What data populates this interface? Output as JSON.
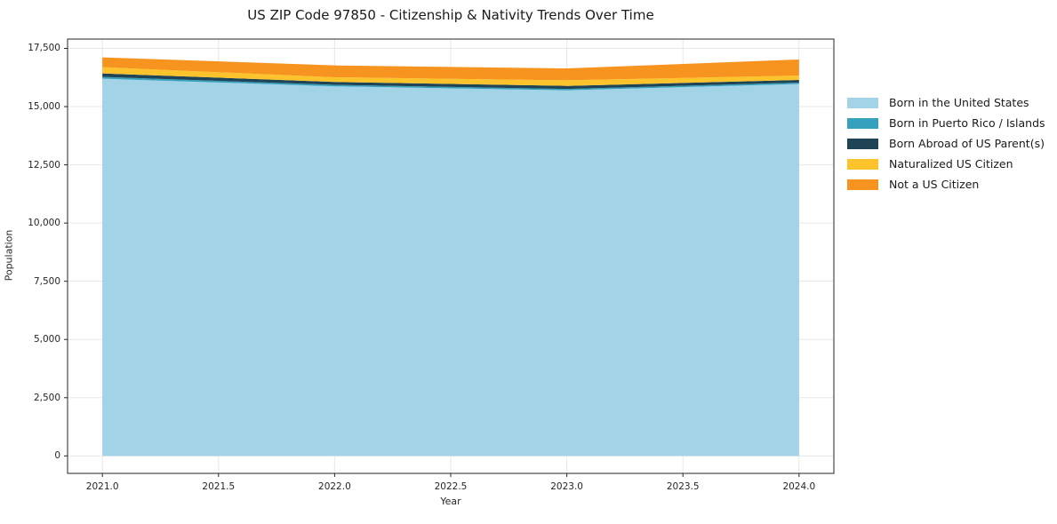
{
  "chart_data": {
    "type": "area",
    "stacked": true,
    "title": "US ZIP Code 97850 - Citizenship & Nativity Trends Over Time",
    "xlabel": "Year",
    "ylabel": "Population",
    "x": [
      2021,
      2022,
      2023,
      2024
    ],
    "series": [
      {
        "name": "Born in the United States",
        "color": "#a3d3e6",
        "values": [
          16200,
          15870,
          15700,
          15970
        ]
      },
      {
        "name": "Born in Puerto Rico / Islands",
        "color": "#35a1bd",
        "values": [
          75,
          65,
          60,
          60
        ]
      },
      {
        "name": "Born Abroad of US Parent(s)",
        "color": "#1f4456",
        "values": [
          150,
          125,
          130,
          115
        ]
      },
      {
        "name": "Naturalized US Citizen",
        "color": "#fcc32d",
        "values": [
          270,
          200,
          240,
          190
        ]
      },
      {
        "name": "Not a US Citizen",
        "color": "#f7941f",
        "values": [
          420,
          510,
          510,
          690
        ]
      }
    ],
    "totals": [
      17115,
      16770,
      16640,
      17025
    ],
    "x_tick_labels": [
      "2021.0",
      "2021.5",
      "2022.0",
      "2022.5",
      "2023.0",
      "2023.5",
      "2024.0"
    ],
    "x_tick_values": [
      2021,
      2021.5,
      2022,
      2022.5,
      2023,
      2023.5,
      2024
    ],
    "y_tick_labels": [
      "0",
      "2,500",
      "5,000",
      "7,500",
      "10,000",
      "12,500",
      "15,000",
      "17,500"
    ],
    "y_tick_values": [
      0,
      2500,
      5000,
      7500,
      10000,
      12500,
      15000,
      17500
    ],
    "xlim": [
      2020.85,
      2024.15
    ],
    "ylim": [
      -750,
      17900
    ],
    "grid": true,
    "legend_position": "right-outside",
    "colors": {
      "plot_background": "#ffffff",
      "grid": "#e7e7e7",
      "spine": "#262626",
      "tick": "#262626",
      "text": "#1a1a1a"
    }
  }
}
